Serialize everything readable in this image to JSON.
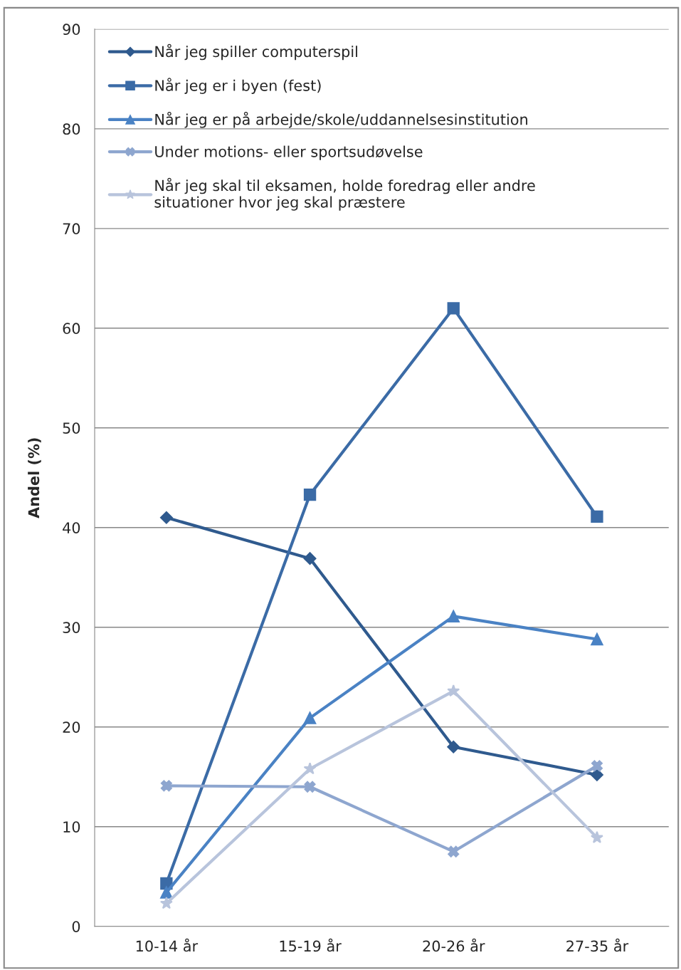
{
  "chart_data": {
    "type": "line",
    "ylabel": "Andel (%)",
    "categories": [
      "10-14 år",
      "15-19 år",
      "20-26 år",
      "27-35 år"
    ],
    "series": [
      {
        "name": "Når jeg spiller computerspil",
        "color": "#2f5a8e",
        "marker": "diamond",
        "values": [
          41.0,
          36.9,
          18.0,
          15.2
        ]
      },
      {
        "name": "Når jeg er i byen (fest)",
        "color": "#3b6ba6",
        "marker": "square",
        "values": [
          4.3,
          43.3,
          62.0,
          41.1
        ]
      },
      {
        "name": "Når jeg er på arbejde/skole/uddannelsesinstitution",
        "color": "#4a82c4",
        "marker": "triangle",
        "values": [
          3.4,
          20.9,
          31.1,
          28.8
        ]
      },
      {
        "name": "Under motions- eller sportsudøvelse",
        "color": "#8ea6cf",
        "marker": "cross",
        "values": [
          14.1,
          14.0,
          7.5,
          16.1
        ]
      },
      {
        "name": "Når jeg skal til eksamen, holde foredrag eller andre\nsituationer hvor jeg skal præstere",
        "color": "#b8c4dc",
        "marker": "star",
        "values": [
          2.3,
          15.8,
          23.6,
          8.9
        ]
      }
    ],
    "ylim": [
      0,
      90
    ],
    "yticks": [
      0,
      10,
      20,
      30,
      40,
      50,
      60,
      70,
      80,
      90
    ],
    "grid": "y",
    "legend": "top left",
    "line_style": "solid"
  }
}
